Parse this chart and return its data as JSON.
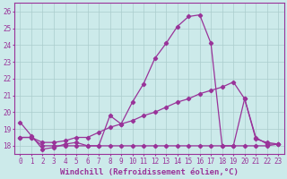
{
  "xlabel": "Windchill (Refroidissement éolien,°C)",
  "bg_color": "#cceaea",
  "grid_color": "#aacccc",
  "line_color": "#993399",
  "x_ticks": [
    0,
    1,
    2,
    3,
    4,
    5,
    6,
    7,
    8,
    9,
    10,
    11,
    12,
    13,
    14,
    15,
    16,
    17,
    18,
    19,
    20,
    21,
    22,
    23
  ],
  "ylim": [
    17.5,
    26.5
  ],
  "xlim": [
    -0.5,
    23.5
  ],
  "line1_x": [
    0,
    1,
    2,
    3,
    4,
    5,
    6,
    7,
    8,
    9,
    10,
    11,
    12,
    13,
    14,
    15,
    16,
    17,
    18,
    19,
    20,
    21,
    22,
    23
  ],
  "line1_y": [
    19.4,
    18.6,
    17.8,
    17.9,
    18.1,
    18.2,
    18.0,
    18.0,
    19.8,
    19.3,
    20.6,
    21.7,
    23.2,
    24.1,
    25.1,
    25.7,
    25.8,
    24.1,
    18.0,
    18.0,
    20.8,
    18.5,
    18.1,
    18.1
  ],
  "line2_x": [
    0,
    1,
    2,
    3,
    4,
    5,
    6,
    7,
    8,
    9,
    10,
    11,
    12,
    13,
    14,
    15,
    16,
    17,
    18,
    19,
    20,
    21,
    22,
    23
  ],
  "line2_y": [
    18.5,
    18.5,
    18.2,
    18.2,
    18.3,
    18.5,
    18.5,
    18.8,
    19.1,
    19.3,
    19.5,
    19.8,
    20.0,
    20.3,
    20.6,
    20.8,
    21.1,
    21.3,
    21.5,
    21.8,
    20.8,
    18.4,
    18.2,
    18.1
  ],
  "line3_x": [
    0,
    1,
    2,
    3,
    4,
    5,
    6,
    7,
    8,
    9,
    10,
    11,
    12,
    13,
    14,
    15,
    16,
    17,
    18,
    19,
    20,
    21,
    22,
    23
  ],
  "line3_y": [
    18.5,
    18.5,
    18.0,
    18.0,
    18.0,
    18.0,
    18.0,
    18.0,
    18.0,
    18.0,
    18.0,
    18.0,
    18.0,
    18.0,
    18.0,
    18.0,
    18.0,
    18.0,
    18.0,
    18.0,
    18.0,
    18.0,
    18.0,
    18.1
  ],
  "xlabel_fontsize": 6.5,
  "tick_fontsize": 5.5,
  "ytick_labels": [
    18,
    19,
    20,
    21,
    22,
    23,
    24,
    25,
    26
  ]
}
